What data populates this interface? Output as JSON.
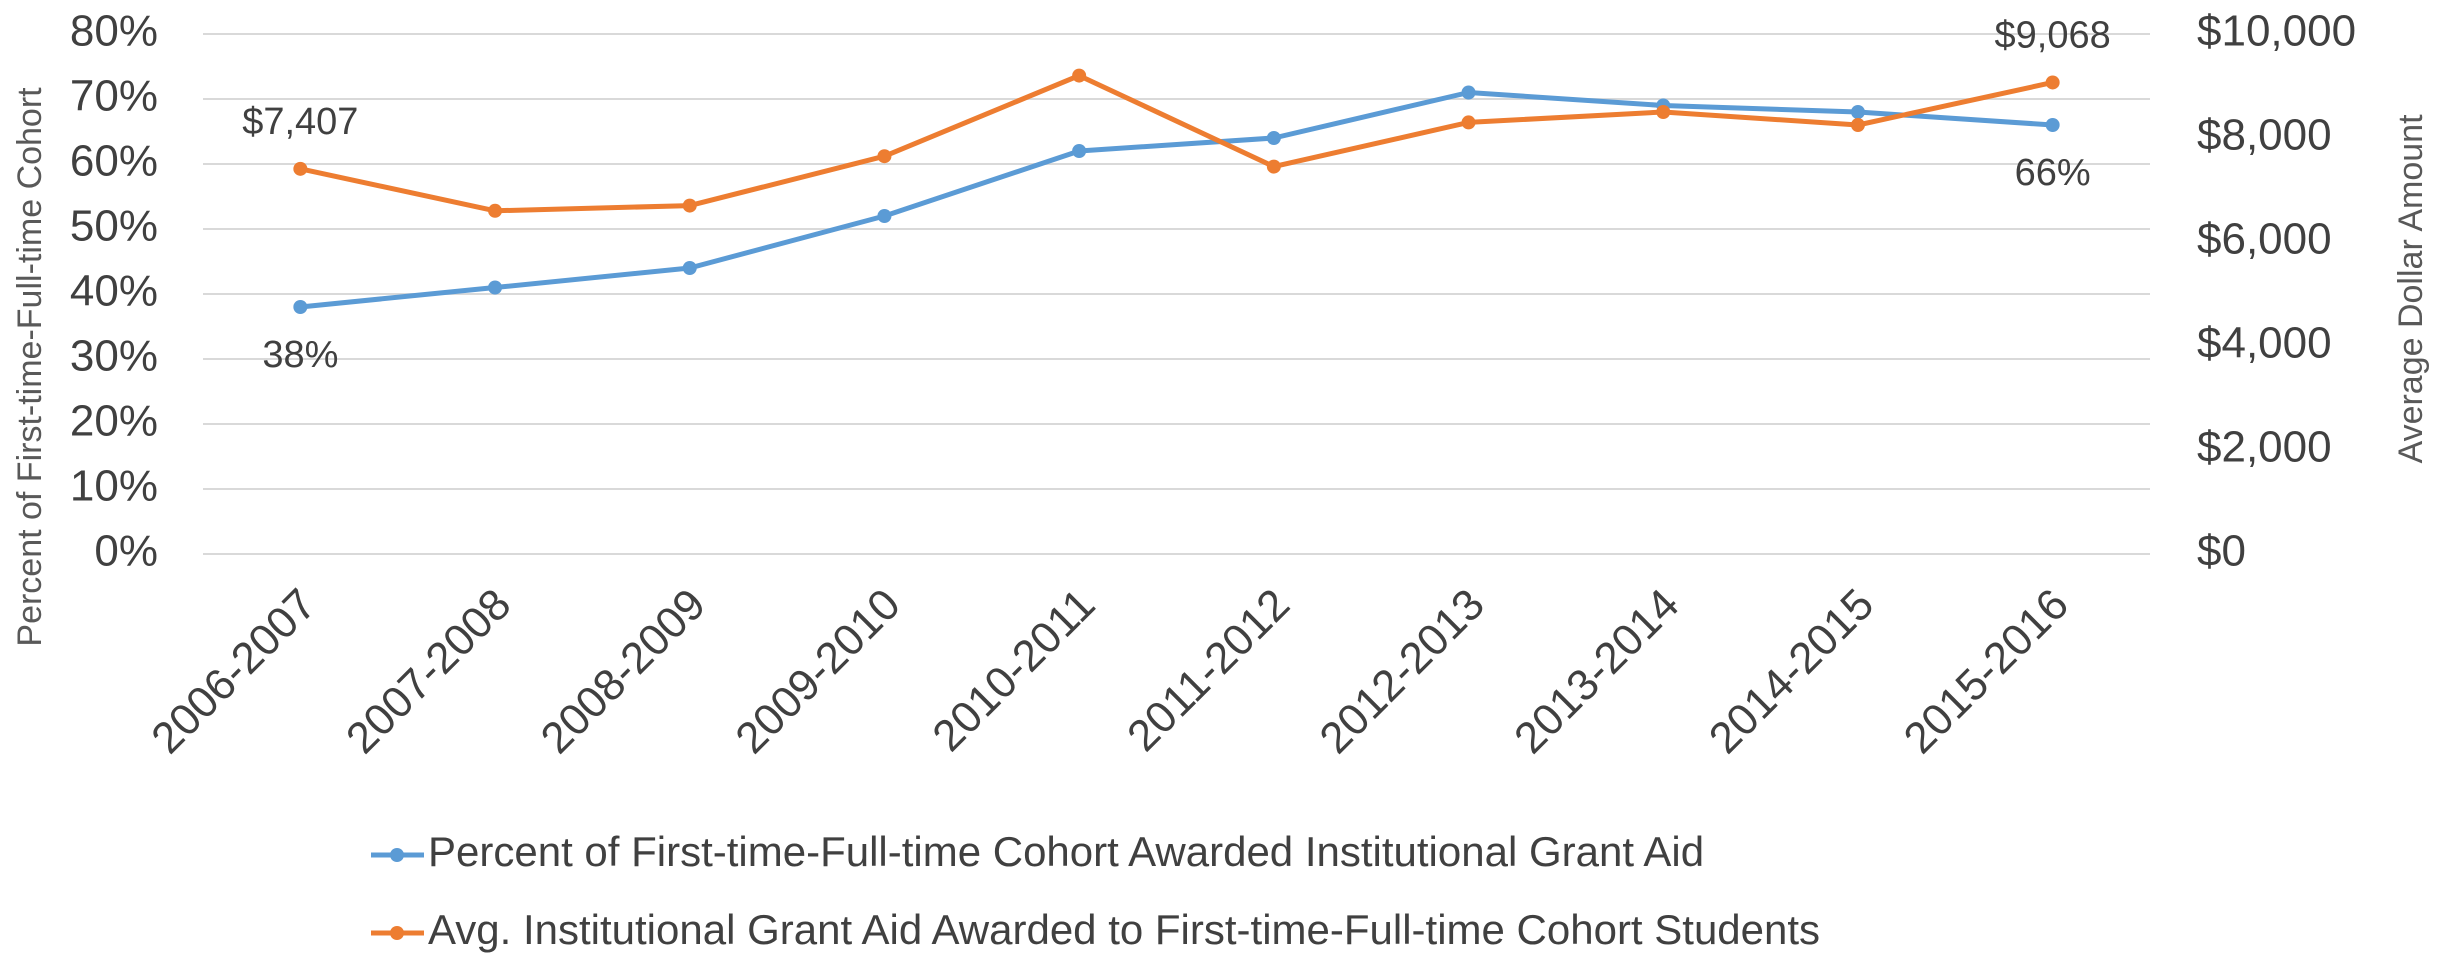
{
  "chart_data": {
    "type": "line",
    "categories": [
      "2006-2007",
      "2007-2008",
      "2008-2009",
      "2009-2010",
      "2010-2011",
      "2011-2012",
      "2012-2013",
      "2013-2014",
      "2014-2015",
      "2015-2016"
    ],
    "ylabel": "Percent of First-time-Full-time Cohort",
    "y2label": "Average Dollar Amount",
    "ylim": [
      0,
      80
    ],
    "yticks": [
      {
        "value": 0,
        "label": "0%"
      },
      {
        "value": 10,
        "label": "10%"
      },
      {
        "value": 20,
        "label": "20%"
      },
      {
        "value": 30,
        "label": "30%"
      },
      {
        "value": 40,
        "label": "40%"
      },
      {
        "value": 50,
        "label": "50%"
      },
      {
        "value": 60,
        "label": "60%"
      },
      {
        "value": 70,
        "label": "70%"
      },
      {
        "value": 80,
        "label": "80%"
      }
    ],
    "y2lim": [
      0,
      10000
    ],
    "y2ticks": [
      {
        "value": 0,
        "label": "$0"
      },
      {
        "value": 2000,
        "label": "$2,000"
      },
      {
        "value": 4000,
        "label": "$4,000"
      },
      {
        "value": 6000,
        "label": "$6,000"
      },
      {
        "value": 8000,
        "label": "$8,000"
      },
      {
        "value": 10000,
        "label": "$10,000"
      }
    ],
    "grid": true,
    "legend": "bottom",
    "series": [
      {
        "name": "Percent of First-time-Full-time Cohort Awarded Institutional Grant Aid",
        "color": "#5b9bd5",
        "values": [
          38,
          41,
          44,
          52,
          62,
          64,
          71,
          69,
          68,
          66
        ],
        "value_labels": [
          "38%",
          null,
          null,
          null,
          null,
          null,
          null,
          null,
          null,
          "66%"
        ]
      },
      {
        "name": "Avg. Institutional Grant Aid Awarded to First-time-Full-time Cohort Students",
        "color": "#ed7d31",
        "axis": "y2",
        "values": [
          7407,
          6600,
          6700,
          7650,
          9200,
          7450,
          8300,
          8500,
          8250,
          9068
        ],
        "value_labels": [
          "$7,407",
          null,
          null,
          null,
          null,
          null,
          null,
          null,
          null,
          "$9,068"
        ]
      }
    ]
  }
}
